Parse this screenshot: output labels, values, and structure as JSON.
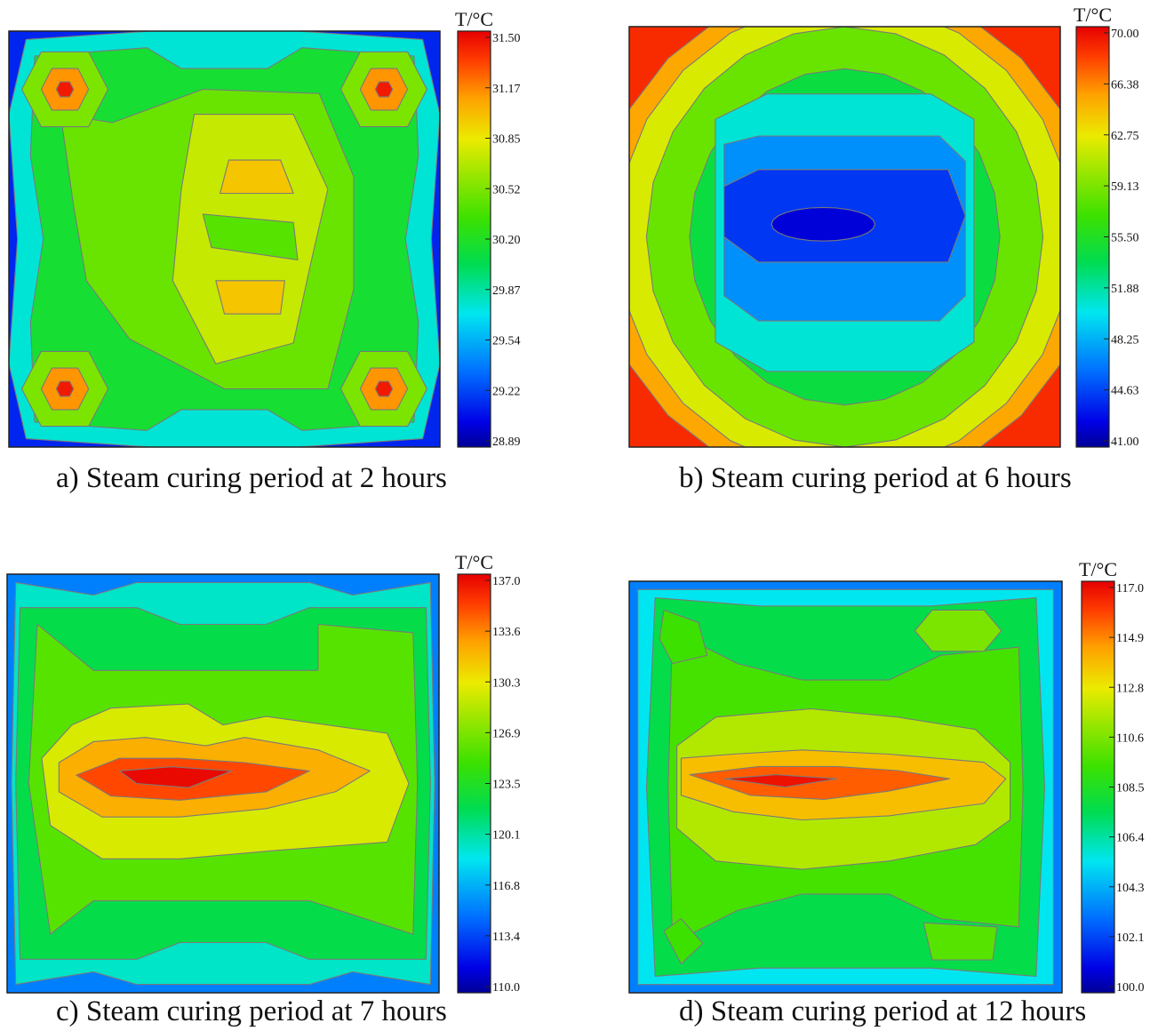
{
  "chart_data": [
    {
      "type": "heatmap",
      "caption": "a)  Steam curing period at 2 hours",
      "colorbar_title": "T/°C",
      "colorbar_ticks": [
        "31.50",
        "31.17",
        "30.85",
        "30.52",
        "30.20",
        "29.87",
        "29.54",
        "29.22",
        "28.89"
      ],
      "value_range": [
        28.89,
        31.5
      ],
      "pattern": "four hot corner spots, cooler blue edge midpoints, warmer yellow core"
    },
    {
      "type": "heatmap",
      "caption": "b)  Steam curing period at 6 hours",
      "colorbar_title": "T/°C",
      "colorbar_ticks": [
        "70.00",
        "66.38",
        "62.75",
        "59.13",
        "55.50",
        "51.88",
        "48.25",
        "44.63",
        "41.00"
      ],
      "value_range": [
        41.0,
        70.0
      ],
      "pattern": "cold blue center, hot red corners"
    },
    {
      "type": "heatmap",
      "caption": "c)  Steam curing period at 7 hours",
      "colorbar_title": "T/°C",
      "colorbar_ticks": [
        "137.0",
        "133.6",
        "130.3",
        "126.9",
        "123.5",
        "120.1",
        "116.8",
        "113.4",
        "110.0"
      ],
      "value_range": [
        110.0,
        137.0
      ],
      "pattern": "hot red horizontal band in center, cool edges"
    },
    {
      "type": "heatmap",
      "caption": "d)  Steam curing period at 12 hours",
      "colorbar_title": "T/°C",
      "colorbar_ticks": [
        "117.0",
        "114.9",
        "112.8",
        "110.6",
        "108.5",
        "106.4",
        "104.3",
        "102.1",
        "100.0"
      ],
      "value_range": [
        100.0,
        117.0
      ],
      "pattern": "hot red horizontal band in center, cool blue edges"
    }
  ]
}
